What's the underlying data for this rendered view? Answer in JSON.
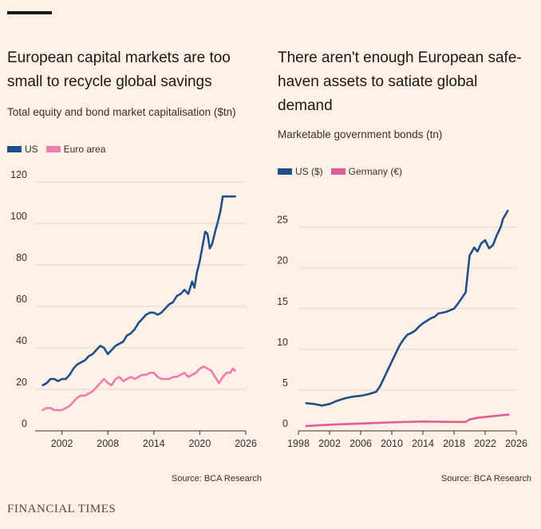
{
  "brand": "FINANCIAL TIMES",
  "colors": {
    "us": "#1f4e8c",
    "pink": "#f17ab0",
    "germany": "#e35c97",
    "grid": "#e3d6c8",
    "axis": "#33302e"
  },
  "left": {
    "title": "European capital markets are too small to recycle global savings",
    "subtitle": "Total equity and bond market capitalisation ($tn)",
    "source": "Source: BCA Research",
    "chart_data": {
      "type": "line",
      "title": "European capital markets are too small to recycle global savings",
      "subtitle": "Total equity and bond market capitalisation ($tn)",
      "xlim": [
        1998.5,
        2026
      ],
      "ylim": [
        0,
        120
      ],
      "xticks": [
        2002,
        2008,
        2014,
        2020,
        2026
      ],
      "yticks": [
        0,
        20,
        40,
        60,
        80,
        100,
        120
      ],
      "grid": true,
      "legend": "top-left",
      "series": [
        {
          "name": "US",
          "color": "#1f4e8c",
          "x": [
            1999.5,
            2000,
            2000.5,
            2001,
            2001.5,
            2002,
            2002.5,
            2003,
            2003.5,
            2004,
            2004.5,
            2005,
            2005.5,
            2006,
            2006.5,
            2007,
            2007.5,
            2008,
            2008.5,
            2009,
            2009.5,
            2010,
            2010.5,
            2011,
            2011.5,
            2012,
            2012.5,
            2013,
            2013.5,
            2014,
            2014.5,
            2015,
            2015.5,
            2016,
            2016.5,
            2017,
            2017.5,
            2018,
            2018.5,
            2019,
            2019.3,
            2019.6,
            2020,
            2020.3,
            2020.7,
            2021,
            2021.3,
            2021.6,
            2022,
            2022.3,
            2022.7,
            2023,
            2023.5,
            2024,
            2024.3,
            2024.6
          ],
          "values": [
            22,
            23,
            25,
            25,
            24,
            25,
            25,
            27,
            30,
            32,
            33,
            34,
            36,
            37,
            39,
            41,
            40,
            37,
            39,
            41,
            42,
            43,
            46,
            47,
            49,
            52,
            54,
            56,
            57,
            57,
            56,
            57,
            59,
            61,
            62,
            65,
            66,
            68,
            66,
            72,
            69,
            76,
            82,
            88,
            96,
            95,
            88,
            90,
            96,
            100,
            106,
            113,
            113,
            113,
            113,
            113
          ],
          "note": ""
        },
        {
          "name": "Euro area",
          "color": "#f17ab0",
          "x": [
            1999.5,
            2000,
            2000.5,
            2001,
            2001.5,
            2002,
            2002.5,
            2003,
            2003.5,
            2004,
            2004.5,
            2005,
            2005.5,
            2006,
            2006.5,
            2007,
            2007.5,
            2008,
            2008.5,
            2009,
            2009.5,
            2010,
            2010.5,
            2011,
            2011.5,
            2012,
            2012.5,
            2013,
            2013.5,
            2014,
            2014.5,
            2015,
            2015.5,
            2016,
            2016.5,
            2017,
            2017.5,
            2018,
            2018.5,
            2019,
            2019.5,
            2020,
            2020.5,
            2021,
            2021.5,
            2022,
            2022.5,
            2023,
            2023.5,
            2024,
            2024.3,
            2024.6
          ],
          "values": [
            10,
            11,
            11,
            10,
            10,
            10,
            11,
            12,
            14,
            16,
            17,
            17,
            18,
            19,
            21,
            23,
            25,
            23,
            22,
            25,
            26,
            24,
            25,
            26,
            25,
            26,
            27,
            27,
            28,
            28,
            26,
            25,
            25,
            25,
            26,
            26,
            27,
            28,
            26,
            27,
            28,
            30,
            31,
            30,
            29,
            26,
            23,
            26,
            28,
            28,
            30,
            29
          ]
        }
      ]
    }
  },
  "right": {
    "title": "There aren't enough European safe-haven assets to satiate global demand",
    "subtitle": "Marketable government bonds (tn)",
    "source": "Source: BCA Research",
    "chart_data": {
      "type": "line",
      "title": "There aren't enough European safe-haven assets to satiate global demand",
      "subtitle": "Marketable government bonds (tn)",
      "xlim": [
        1998,
        2026
      ],
      "ylim": [
        0,
        28
      ],
      "xticks": [
        1998,
        2002,
        2006,
        2010,
        2014,
        2018,
        2022,
        2026
      ],
      "yticks": [
        0,
        5,
        10,
        15,
        20,
        25
      ],
      "grid": true,
      "legend": "top-left",
      "series": [
        {
          "name": "US ($)",
          "color": "#1f4e8c",
          "x": [
            1999,
            2000,
            2001,
            2002,
            2003,
            2004,
            2005,
            2006,
            2007,
            2008,
            2008.5,
            2009,
            2009.5,
            2010,
            2010.5,
            2011,
            2011.5,
            2012,
            2012.5,
            2013,
            2013.5,
            2014,
            2014.5,
            2015,
            2015.5,
            2016,
            2016.5,
            2017,
            2017.5,
            2018,
            2018.5,
            2019,
            2019.5,
            2020,
            2020.3,
            2020.6,
            2021,
            2021.5,
            2022,
            2022.5,
            2023,
            2023.5,
            2024,
            2024.3,
            2024.6,
            2024.9
          ],
          "values": [
            3.4,
            3.3,
            3.1,
            3.3,
            3.7,
            4.0,
            4.2,
            4.3,
            4.5,
            4.8,
            5.5,
            6.5,
            7.5,
            8.5,
            9.5,
            10.5,
            11.2,
            11.8,
            12.0,
            12.3,
            12.8,
            13.2,
            13.5,
            13.8,
            14.0,
            14.4,
            14.5,
            14.6,
            14.8,
            15.0,
            15.6,
            16.3,
            17.0,
            21.5,
            22.0,
            22.5,
            22.0,
            23.0,
            23.4,
            22.4,
            22.8,
            24.0,
            25.0,
            26.0,
            26.5,
            27.0
          ]
        },
        {
          "name": "Germany (€)",
          "color": "#e35c97",
          "x": [
            1999,
            2002,
            2006,
            2010,
            2014,
            2018,
            2019.5,
            2020,
            2021,
            2022,
            2023,
            2024,
            2025
          ],
          "values": [
            0.6,
            0.75,
            0.9,
            1.05,
            1.15,
            1.1,
            1.1,
            1.4,
            1.6,
            1.7,
            1.8,
            1.9,
            2.0
          ]
        }
      ]
    }
  }
}
